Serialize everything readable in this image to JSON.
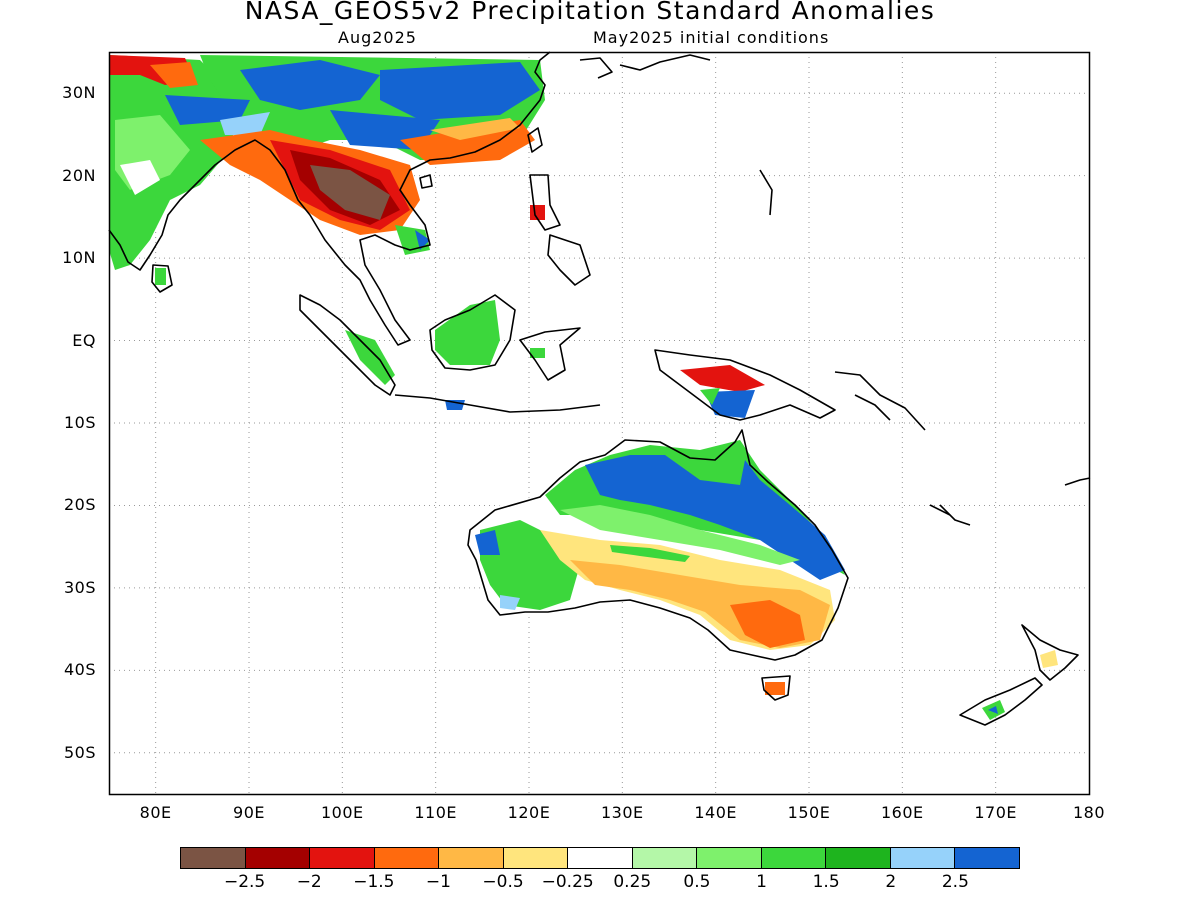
{
  "header": {
    "title": "NASA_GEOS5v2 Precipitation Standard Anomalies",
    "valid_month": "Aug2025",
    "initial_conditions": "May2025 initial conditions"
  },
  "axes": {
    "lat_labels": [
      "30N",
      "20N",
      "10N",
      "EQ",
      "10S",
      "20S",
      "30S",
      "40S",
      "50S"
    ],
    "lon_labels": [
      "80E",
      "90E",
      "100E",
      "110E",
      "120E",
      "130E",
      "140E",
      "150E",
      "160E",
      "170E",
      "180"
    ],
    "lat_range": [
      -55,
      35
    ],
    "lon_range": [
      75,
      180
    ],
    "grid": "dotted"
  },
  "colorbar": {
    "colors": [
      "#7b5444",
      "#a40000",
      "#e3130f",
      "#ff6a0e",
      "#ffb845",
      "#ffe57d",
      "#ffffff",
      "#b4f7a8",
      "#7ef16c",
      "#3cd73c",
      "#1eb41e",
      "#96d2fa",
      "#1464d2"
    ],
    "labels": [
      "−2.5",
      "−2",
      "−1.5",
      "−1",
      "−0.5",
      "−0.25",
      "0.25",
      "0.5",
      "1",
      "1.5",
      "2",
      "2.5"
    ]
  }
}
